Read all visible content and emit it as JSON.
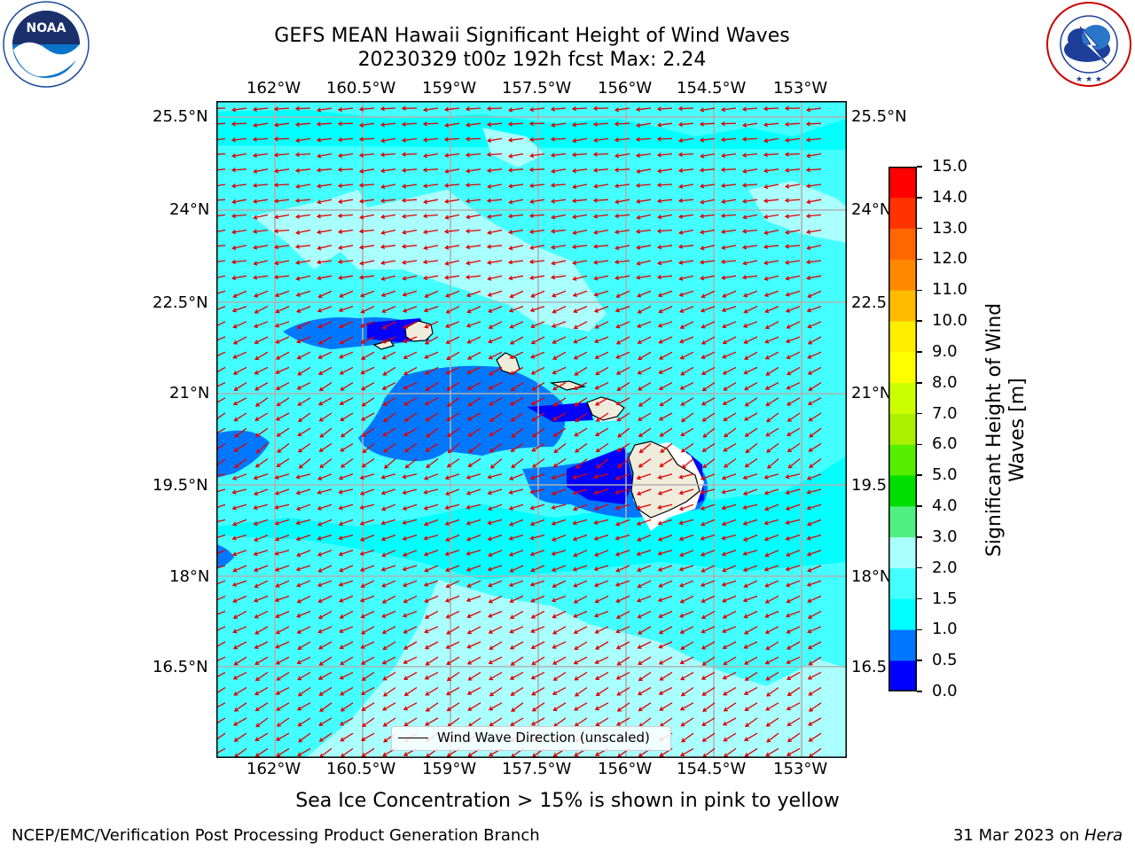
{
  "title": {
    "line1": "GEFS MEAN Hawaii Significant Height of Wind Waves",
    "line2": "20230329 t00z 192h fcst   Max: 2.24"
  },
  "logos": {
    "noaa": {
      "text": "NOAA",
      "ring_text": "NATIONAL OCEANIC AND ATMOSPHERIC ADMINISTRATION · U.S. DEPARTMENT OF COMMERCE"
    },
    "nws": {
      "ring_text": "NATIONAL WEATHER SERVICE"
    }
  },
  "map": {
    "lon_ticks": [
      "162°W",
      "160.5°W",
      "159°W",
      "157.5°W",
      "156°W",
      "154.5°W",
      "153°W"
    ],
    "lat_ticks": [
      "25.5°N",
      "24°N",
      "22.5°N",
      "21°N",
      "19.5°N",
      "18°N",
      "16.5°N"
    ],
    "lat_ticks_right": [
      "25.5°N",
      "24°N",
      "22.5",
      "21°N",
      "19.5",
      "18°N",
      "16.5"
    ],
    "legend_label": "Wind Wave Direction (unscaled)",
    "arrow_color": "#e00000",
    "ocean_color": "#00ffff"
  },
  "colorbar": {
    "label_line1": "Significant Height of Wind",
    "label_line2": "Waves [m]",
    "ticks": [
      "0.0",
      "0.5",
      "1.0",
      "1.5",
      "2.0",
      "3.0",
      "4.0",
      "5.0",
      "6.0",
      "7.0",
      "8.0",
      "9.0",
      "10.0",
      "11.0",
      "12.0",
      "13.0",
      "14.0",
      "15.0"
    ],
    "colors": [
      "#0000ff",
      "#0077ff",
      "#00ffff",
      "#44ffff",
      "#aaffff",
      "#50f080",
      "#00dd00",
      "#55ee00",
      "#aaf000",
      "#ccff00",
      "#ffff00",
      "#ffee00",
      "#ffbb00",
      "#ff8800",
      "#ff6600",
      "#ff3300",
      "#ff0000"
    ]
  },
  "subtitle": "Sea Ice Concentration > 15% is shown in pink to yellow",
  "footer": {
    "left": "NCEP/EMC/Verification Post Processing Product Generation Branch",
    "right_prefix": "31 Mar 2023 on ",
    "right_machine": "Hera"
  }
}
